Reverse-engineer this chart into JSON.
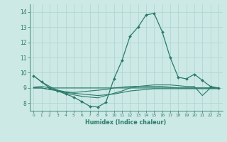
{
  "xlabel": "Humidex (Indice chaleur)",
  "xlim": [
    -0.5,
    23.5
  ],
  "ylim": [
    7.5,
    14.5
  ],
  "yticks": [
    8,
    9,
    10,
    11,
    12,
    13,
    14
  ],
  "xticks": [
    0,
    1,
    2,
    3,
    4,
    5,
    6,
    7,
    8,
    9,
    10,
    11,
    12,
    13,
    14,
    15,
    16,
    17,
    18,
    19,
    20,
    21,
    22,
    23
  ],
  "bg_color": "#cce9e5",
  "grid_color": "#b0d8d3",
  "line_color": "#2a7a6a",
  "series": [
    {
      "x": [
        0,
        1,
        2,
        3,
        4,
        5,
        6,
        7,
        8,
        9,
        10,
        11,
        12,
        13,
        14,
        15,
        16,
        17,
        18,
        19,
        20,
        21,
        22,
        23
      ],
      "y": [
        9.8,
        9.4,
        9.0,
        8.8,
        8.6,
        8.4,
        8.1,
        7.8,
        7.75,
        8.05,
        9.6,
        10.8,
        12.4,
        13.0,
        13.8,
        13.9,
        12.7,
        11.0,
        9.7,
        9.6,
        9.9,
        9.5,
        9.1,
        9.0
      ],
      "has_marker": true
    },
    {
      "x": [
        0,
        1,
        2,
        3,
        4,
        5,
        6,
        7,
        8,
        9,
        10,
        11,
        12,
        13,
        14,
        15,
        16,
        17,
        18,
        19,
        20,
        21,
        22,
        23
      ],
      "y": [
        9.0,
        9.0,
        8.9,
        8.85,
        8.75,
        8.7,
        8.75,
        8.8,
        8.85,
        8.9,
        9.0,
        9.05,
        9.1,
        9.1,
        9.1,
        9.1,
        9.1,
        9.05,
        9.0,
        9.0,
        9.0,
        9.0,
        9.0,
        9.0
      ],
      "has_marker": false
    },
    {
      "x": [
        0,
        1,
        2,
        3,
        4,
        5,
        6,
        7,
        8,
        9,
        10,
        11,
        12,
        13,
        14,
        15,
        16,
        17,
        18,
        19,
        20,
        21,
        22,
        23
      ],
      "y": [
        9.0,
        9.0,
        8.9,
        8.8,
        8.7,
        8.65,
        8.6,
        8.55,
        8.5,
        8.55,
        8.6,
        8.7,
        8.8,
        8.85,
        8.9,
        8.95,
        8.95,
        8.95,
        8.95,
        8.95,
        8.95,
        8.95,
        8.95,
        8.95
      ],
      "has_marker": false
    },
    {
      "x": [
        0,
        1,
        2,
        3,
        4,
        5,
        6,
        7,
        8,
        9,
        10,
        11,
        12,
        13,
        14,
        15,
        16,
        17,
        18,
        19,
        20,
        21,
        22,
        23
      ],
      "y": [
        9.05,
        9.1,
        9.0,
        9.0,
        9.0,
        9.0,
        9.0,
        9.0,
        9.0,
        9.0,
        9.0,
        9.0,
        9.0,
        9.0,
        9.0,
        9.0,
        9.0,
        9.0,
        9.0,
        9.0,
        9.0,
        9.0,
        9.0,
        9.0
      ],
      "has_marker": false
    },
    {
      "x": [
        0,
        1,
        2,
        3,
        4,
        5,
        6,
        7,
        8,
        9,
        10,
        11,
        12,
        13,
        14,
        15,
        16,
        17,
        18,
        19,
        20,
        21,
        22,
        23
      ],
      "y": [
        9.8,
        9.4,
        9.1,
        8.85,
        8.65,
        8.55,
        8.45,
        8.4,
        8.35,
        8.5,
        8.65,
        8.8,
        9.0,
        9.1,
        9.15,
        9.2,
        9.2,
        9.2,
        9.15,
        9.1,
        9.1,
        8.5,
        9.0,
        9.0
      ],
      "has_marker": false
    }
  ]
}
